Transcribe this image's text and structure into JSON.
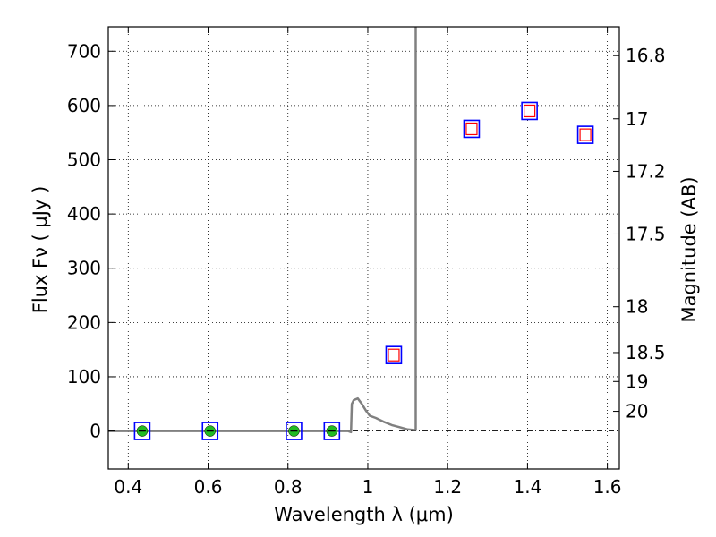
{
  "chart_data": {
    "type": "scatter",
    "title": "",
    "xlabel": "Wavelength  λ (μm)",
    "ylabel": "Flux  Fν  ( μJy )",
    "y2label": "Magnitude (AB)",
    "xlim": [
      0.35,
      1.63
    ],
    "ylim": [
      -70,
      745
    ],
    "grid": true,
    "x_ticks": [
      {
        "value": 0.4,
        "label": "0.4"
      },
      {
        "value": 0.6,
        "label": "0.6"
      },
      {
        "value": 0.8,
        "label": "0.8"
      },
      {
        "value": 1.0,
        "label": "1"
      },
      {
        "value": 1.2,
        "label": "1.2"
      },
      {
        "value": 1.4,
        "label": "1.4"
      },
      {
        "value": 1.6,
        "label": "1.6"
      }
    ],
    "y_ticks": [
      {
        "value": 0,
        "label": "0"
      },
      {
        "value": 100,
        "label": "100"
      },
      {
        "value": 200,
        "label": "200"
      },
      {
        "value": 300,
        "label": "300"
      },
      {
        "value": 400,
        "label": "400"
      },
      {
        "value": 500,
        "label": "500"
      },
      {
        "value": 600,
        "label": "600"
      },
      {
        "value": 700,
        "label": "700"
      }
    ],
    "mag_ticks": [
      {
        "mag": 16.8,
        "label": "16.8"
      },
      {
        "mag": 17.0,
        "label": "17"
      },
      {
        "mag": 17.2,
        "label": "17.2"
      },
      {
        "mag": 17.5,
        "label": "17.5"
      },
      {
        "mag": 18.0,
        "label": "18"
      },
      {
        "mag": 18.5,
        "label": "18.5"
      },
      {
        "mag": 19.0,
        "label": "19"
      },
      {
        "mag": 20.0,
        "label": "20"
      }
    ],
    "series": [
      {
        "marker": "blue-square-green-dot",
        "color": "#0000ff",
        "fill": "#22bb22",
        "x": [
          0.435,
          0.605,
          0.815,
          0.91
        ],
        "y": [
          0,
          0,
          0,
          0
        ]
      },
      {
        "marker": "blue-square-red-square",
        "color": "#0000ff",
        "fill": "#ff0000",
        "x": [
          1.065,
          1.26,
          1.405,
          1.545
        ],
        "y": [
          140,
          557,
          590,
          546
        ]
      },
      {
        "marker": "line",
        "color": "#808080",
        "x": [
          0.35,
          0.95,
          0.958,
          0.96,
          0.965,
          0.975,
          0.985,
          0.995,
          1.005,
          1.02,
          1.04,
          1.06,
          1.08,
          1.1,
          1.115,
          1.12,
          1.12
        ],
        "y": [
          0,
          0,
          -2,
          50,
          57,
          60,
          50,
          38,
          28,
          24,
          17,
          11,
          7,
          3,
          2,
          2,
          745
        ]
      }
    ]
  }
}
